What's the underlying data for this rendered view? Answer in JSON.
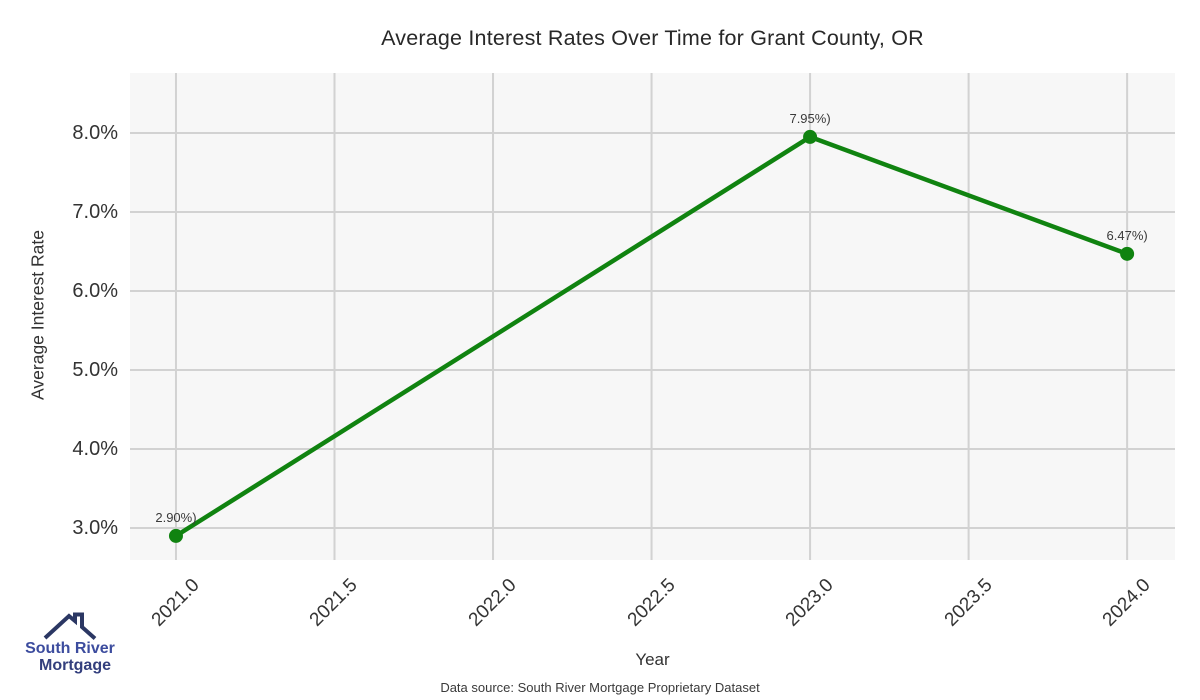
{
  "title": "Average Interest Rates Over Time for Grant County, OR",
  "footer": {
    "source": "Data source: South River Mortgage Proprietary Dataset"
  },
  "logo": {
    "line1": "South River",
    "line2": "Mortgage",
    "roof_color": "#2b3763",
    "text_color": "#3c4c9e"
  },
  "chart_data": {
    "type": "line",
    "title": "Average Interest Rates Over Time for Grant County, OR",
    "xlabel": "Year",
    "ylabel": "Average Interest Rate",
    "x": [
      2021.0,
      2023.0,
      2024.0
    ],
    "y": [
      2.9,
      7.95,
      6.47
    ],
    "point_labels": [
      "2.90%)",
      "7.95%)",
      "6.47%)"
    ],
    "x_ticks": [
      2021.0,
      2021.5,
      2022.0,
      2022.5,
      2023.0,
      2023.5,
      2024.0
    ],
    "x_tick_labels": [
      "2021.0",
      "2021.5",
      "2022.0",
      "2022.5",
      "2023.0",
      "2023.5",
      "2024.0"
    ],
    "y_ticks": [
      3.0,
      4.0,
      5.0,
      6.0,
      7.0,
      8.0
    ],
    "y_tick_labels": [
      "3.0%",
      "4.0%",
      "5.0%",
      "6.0%",
      "7.0%",
      "8.0%"
    ],
    "xlim": [
      2020.855,
      2024.151
    ],
    "ylim": [
      2.595,
      8.759
    ],
    "grid": true,
    "legend": "none",
    "line_color": "#108310",
    "marker_color": "#108310",
    "grid_color": "#d2d2d2",
    "plot_bg": "#f7f7f7",
    "annotation_color": "#3a3a3a"
  }
}
